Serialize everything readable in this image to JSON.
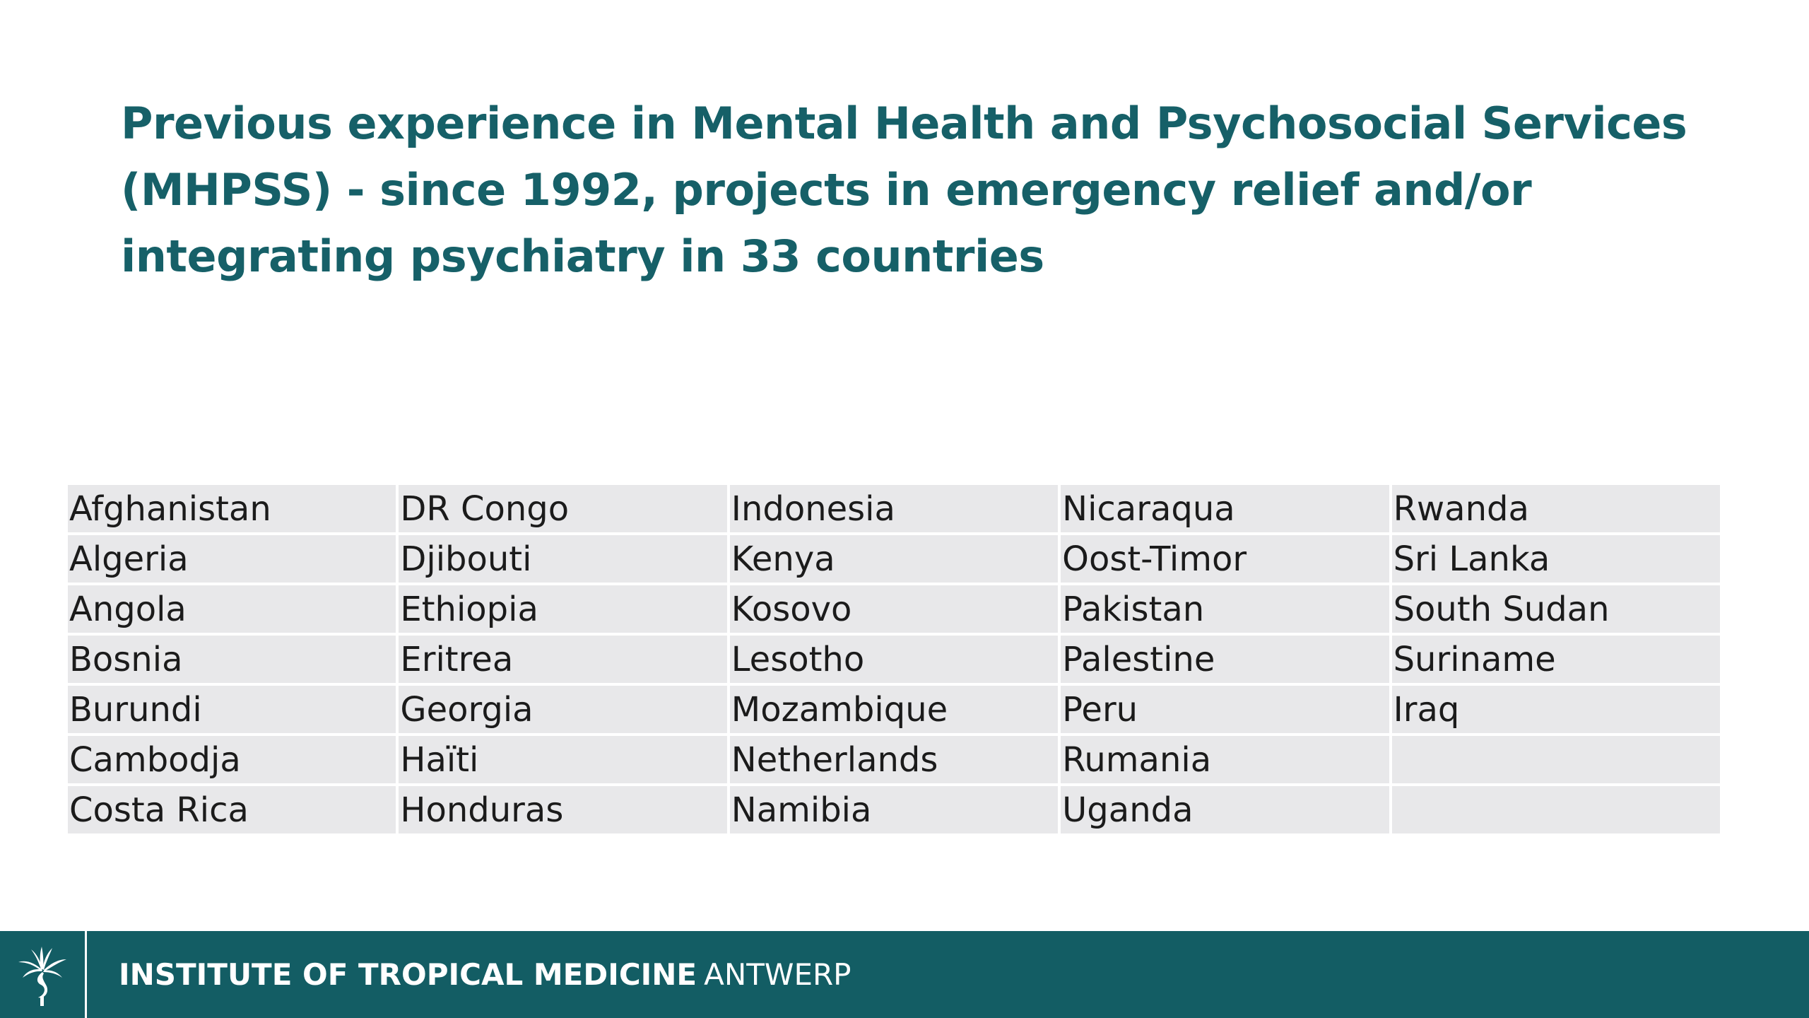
{
  "slide": {
    "title": "Previous experience in Mental Health and Psychosocial Services (MHPSS) - since 1992, projects in emergency relief and/or integrating psychiatry in 33 countries"
  },
  "countries": {
    "rows": [
      [
        "Afghanistan",
        "DR Congo",
        "Indonesia",
        "Nicaraqua",
        "Rwanda"
      ],
      [
        "Algeria",
        "Djibouti",
        "Kenya",
        "Oost-Timor",
        "Sri Lanka"
      ],
      [
        "Angola",
        "Ethiopia",
        "Kosovo",
        "Pakistan",
        "South Sudan"
      ],
      [
        "Bosnia",
        "Eritrea",
        "Lesotho",
        "Palestine",
        "Suriname"
      ],
      [
        "Burundi",
        "Georgia",
        "Mozambique",
        "Peru",
        "Iraq"
      ],
      [
        "Cambodja",
        "Haïti",
        "Netherlands",
        "Rumania",
        ""
      ],
      [
        "Costa Rica",
        "Honduras",
        "Namibia",
        "Uganda",
        ""
      ]
    ]
  },
  "footer": {
    "org_name_bold": "INSTITUTE OF TROPICAL MEDICINE",
    "org_name_light": "ANTWERP",
    "logo_icon": "palm-tree-logo-icon",
    "background_color": "#135d64",
    "title_color": "#166068"
  }
}
